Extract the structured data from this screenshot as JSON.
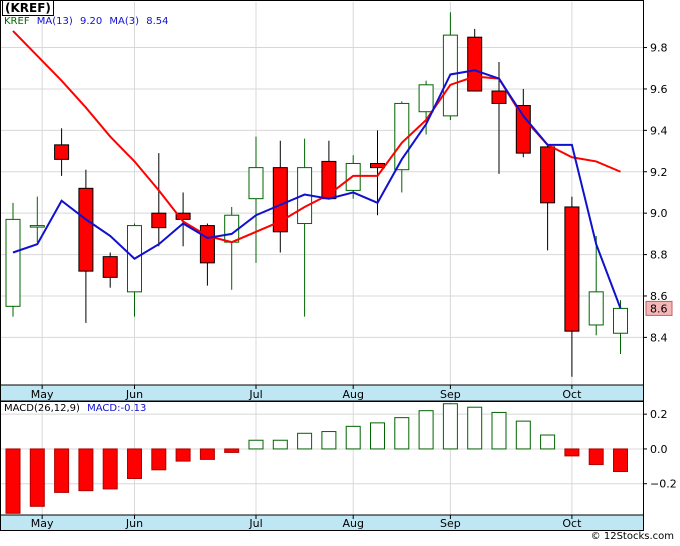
{
  "header": {
    "symbol_title": "(KREF)",
    "ticker": "KREF",
    "ma13_label": "MA(13)",
    "ma13_value": "9.20",
    "ma3_label": "MA(3)",
    "ma3_value": "8.54"
  },
  "macd_header": {
    "label": "MACD(26,12,9)",
    "value_label": "MACD:-0.13"
  },
  "credit": "© 12Stocks.com",
  "colors": {
    "up_candle_fill": "#ffffff",
    "up_candle_stroke": "#006400",
    "down_candle_fill": "#ff0000",
    "down_candle_stroke": "#000000",
    "ma13_line": "#ff0000",
    "ma3_line": "#1010d0",
    "axis_band": "#bfe6f3",
    "last_price_box": "#f4b6b6",
    "grid": "#d8d8d8"
  },
  "chart_data": [
    {
      "type": "candlestick",
      "title": "(KREF)",
      "xlabels": [
        "May",
        "Jun",
        "Jul",
        "Aug",
        "Sep",
        "Oct"
      ],
      "ylim": [
        8.17,
        10.02
      ],
      "yticks": [
        8.4,
        8.6,
        8.8,
        9.0,
        9.2,
        9.4,
        9.6,
        9.8
      ],
      "grid": true,
      "last_price_label": "8.6",
      "candles": [
        {
          "o": 8.55,
          "h": 9.05,
          "l": 8.5,
          "c": 8.97
        },
        {
          "o": 8.94,
          "h": 9.08,
          "l": 8.86,
          "c": 8.94
        },
        {
          "o": 9.33,
          "h": 9.41,
          "l": 9.18,
          "c": 9.26
        },
        {
          "o": 9.12,
          "h": 9.21,
          "l": 8.47,
          "c": 8.72
        },
        {
          "o": 8.79,
          "h": 8.81,
          "l": 8.64,
          "c": 8.69
        },
        {
          "o": 8.62,
          "h": 8.95,
          "l": 8.5,
          "c": 8.94
        },
        {
          "o": 9.0,
          "h": 9.29,
          "l": 8.84,
          "c": 8.93
        },
        {
          "o": 9.0,
          "h": 9.1,
          "l": 8.84,
          "c": 8.97
        },
        {
          "o": 8.94,
          "h": 8.95,
          "l": 8.65,
          "c": 8.76
        },
        {
          "o": 8.86,
          "h": 9.03,
          "l": 8.63,
          "c": 8.99
        },
        {
          "o": 9.07,
          "h": 9.37,
          "l": 8.76,
          "c": 9.22
        },
        {
          "o": 9.22,
          "h": 9.35,
          "l": 8.81,
          "c": 8.91
        },
        {
          "o": 8.95,
          "h": 9.36,
          "l": 8.5,
          "c": 9.22
        },
        {
          "o": 9.25,
          "h": 9.35,
          "l": 9.07,
          "c": 9.07
        },
        {
          "o": 9.11,
          "h": 9.28,
          "l": 9.07,
          "c": 9.24
        },
        {
          "o": 9.24,
          "h": 9.4,
          "l": 8.99,
          "c": 9.22
        },
        {
          "o": 9.21,
          "h": 9.54,
          "l": 9.1,
          "c": 9.53
        },
        {
          "o": 9.49,
          "h": 9.64,
          "l": 9.38,
          "c": 9.62
        },
        {
          "o": 9.47,
          "h": 9.97,
          "l": 9.45,
          "c": 9.86
        },
        {
          "o": 9.85,
          "h": 9.89,
          "l": 9.59,
          "c": 9.59
        },
        {
          "o": 9.59,
          "h": 9.73,
          "l": 9.19,
          "c": 9.53
        },
        {
          "o": 9.52,
          "h": 9.6,
          "l": 9.27,
          "c": 9.29
        },
        {
          "o": 9.32,
          "h": 9.33,
          "l": 8.82,
          "c": 9.05
        },
        {
          "o": 9.03,
          "h": 9.08,
          "l": 8.21,
          "c": 8.43
        },
        {
          "o": 8.46,
          "h": 8.89,
          "l": 8.41,
          "c": 8.62
        },
        {
          "o": 8.42,
          "h": 8.58,
          "l": 8.32,
          "c": 8.54
        }
      ],
      "series": [
        {
          "name": "MA(13)",
          "values": [
            9.88,
            9.76,
            9.64,
            9.51,
            9.37,
            9.25,
            9.11,
            8.96,
            8.89,
            8.86,
            8.91,
            8.96,
            9.03,
            9.09,
            9.18,
            9.18,
            9.34,
            9.45,
            9.62,
            9.66,
            9.65,
            9.46,
            9.33,
            9.27,
            9.25,
            9.2
          ]
        },
        {
          "name": "MA(3)",
          "values": [
            8.81,
            8.85,
            9.06,
            8.97,
            8.89,
            8.78,
            8.85,
            8.95,
            8.88,
            8.9,
            8.99,
            9.04,
            9.09,
            9.07,
            9.1,
            9.05,
            9.26,
            9.43,
            9.67,
            9.69,
            9.65,
            9.47,
            9.33,
            9.33,
            8.85,
            8.54
          ]
        }
      ]
    },
    {
      "type": "bar",
      "title": "MACD(26,12,9)",
      "xlabels": [
        "May",
        "Jun",
        "Jul",
        "Aug",
        "Sep",
        "Oct"
      ],
      "ylim": [
        -0.38,
        0.27
      ],
      "yticks": [
        -0.2,
        0.0,
        0.2
      ],
      "series": [
        {
          "name": "MACD",
          "values": [
            -0.37,
            -0.33,
            -0.25,
            -0.24,
            -0.23,
            -0.17,
            -0.12,
            -0.07,
            -0.06,
            -0.02,
            0.05,
            0.05,
            0.09,
            0.1,
            0.13,
            0.15,
            0.18,
            0.22,
            0.26,
            0.24,
            0.21,
            0.16,
            0.08,
            -0.04,
            -0.09,
            -0.13
          ]
        }
      ]
    }
  ]
}
